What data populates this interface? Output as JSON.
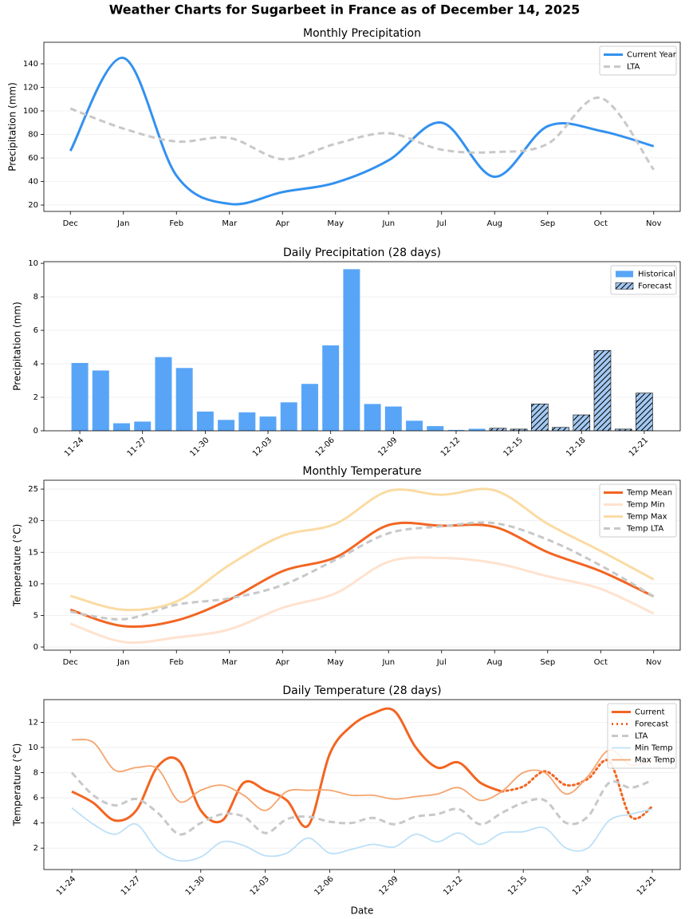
{
  "title": "Weather Charts for Sugarbeet in France as of December 14, 2025",
  "chart_data": [
    {
      "type": "line",
      "title": "Monthly Precipitation",
      "ylabel": "Precipitation (mm)",
      "categories": [
        "Dec",
        "Jan",
        "Feb",
        "Mar",
        "Apr",
        "May",
        "Jun",
        "Jul",
        "Aug",
        "Sep",
        "Oct",
        "Nov"
      ],
      "series": [
        {
          "name": "Current Year",
          "color": "#3391f0",
          "linestyle": "solid",
          "linewidth": 3,
          "values": [
            66,
            145,
            45,
            21,
            31,
            39,
            58,
            90,
            44,
            87,
            83,
            70
          ]
        },
        {
          "name": "LTA",
          "color": "#c8c8c8",
          "linestyle": "dashed",
          "linewidth": 3,
          "values": [
            102,
            85,
            74,
            77,
            59,
            72,
            81,
            67,
            65,
            72,
            111,
            50
          ]
        }
      ],
      "ylim": [
        14.6,
        158.3
      ],
      "yticks": [
        20,
        40,
        60,
        80,
        100,
        120,
        140
      ],
      "grid": true,
      "legend": "upper right"
    },
    {
      "type": "bar",
      "title": "Daily Precipitation (28 days)",
      "ylabel": "Precipitation (mm)",
      "categories": [
        "11-24",
        null,
        null,
        "11-27",
        null,
        null,
        "11-30",
        null,
        null,
        "12-03",
        null,
        null,
        "12-06",
        null,
        null,
        "12-09",
        null,
        null,
        "12-12",
        null,
        null,
        "12-15",
        null,
        null,
        "12-18",
        null,
        null,
        "12-21"
      ],
      "series": [
        {
          "name": "Historical",
          "color": "#58a5f7",
          "hatch": false,
          "values": [
            4.05,
            3.6,
            0.45,
            0.55,
            4.4,
            3.75,
            1.15,
            0.65,
            1.1,
            0.85,
            1.7,
            2.8,
            5.1,
            9.65,
            1.6,
            1.45,
            0.6,
            0.28,
            0.05,
            0.12,
            null,
            null,
            null,
            null,
            null,
            null,
            null,
            null
          ]
        },
        {
          "name": "Forecast",
          "color": "#a3c9f2",
          "hatch": true,
          "values": [
            null,
            null,
            null,
            null,
            null,
            null,
            null,
            null,
            null,
            null,
            null,
            null,
            null,
            null,
            null,
            null,
            null,
            null,
            null,
            null,
            0.15,
            0.1,
            1.6,
            0.2,
            0.95,
            4.8,
            0.1,
            2.25
          ]
        }
      ],
      "ylim": [
        0,
        10.1
      ],
      "yticks": [
        0,
        2,
        4,
        6,
        8,
        10
      ],
      "grid": true,
      "legend": "upper right"
    },
    {
      "type": "line",
      "title": "Monthly Temperature",
      "ylabel": "Temperature (°C)",
      "categories": [
        "Dec",
        "Jan",
        "Feb",
        "Mar",
        "Apr",
        "May",
        "Jun",
        "Jul",
        "Aug",
        "Sep",
        "Oct",
        "Nov"
      ],
      "series": [
        {
          "name": "Temp Mean",
          "color": "#f26522",
          "linestyle": "solid",
          "linewidth": 3,
          "values": [
            5.9,
            3.3,
            4.2,
            7.5,
            12,
            14.2,
            19.3,
            19.2,
            19.0,
            15,
            12,
            8
          ]
        },
        {
          "name": "Temp Min",
          "color": "#ffe2cf",
          "linestyle": "solid",
          "linewidth": 3,
          "values": [
            3.7,
            0.8,
            1.5,
            2.8,
            6.2,
            8.5,
            13.5,
            14.1,
            13.3,
            11.2,
            9.2,
            5.3
          ]
        },
        {
          "name": "Temp Max",
          "color": "#fbdba3",
          "linestyle": "solid",
          "linewidth": 3,
          "values": [
            8.1,
            5.9,
            7.2,
            13,
            17.6,
            19.5,
            24.7,
            24.1,
            24.8,
            19.5,
            15.2,
            10.7
          ]
        },
        {
          "name": "Temp LTA",
          "color": "#c8c8c8",
          "linestyle": "dashed",
          "linewidth": 3,
          "values": [
            5.6,
            4.4,
            6.7,
            7.7,
            9.8,
            13.8,
            18.0,
            19.1,
            19.6,
            17.0,
            12.9,
            8.0
          ]
        }
      ],
      "ylim": [
        -0.5,
        26.4
      ],
      "yticks": [
        0,
        5,
        10,
        15,
        20,
        25
      ],
      "grid": true,
      "legend": "upper right"
    },
    {
      "type": "line",
      "title": "Daily Temperature (28 days)",
      "ylabel": "Temperature (°C)",
      "xlabel": "Date",
      "categories": [
        "11-24",
        null,
        null,
        "11-27",
        null,
        null,
        "11-30",
        null,
        null,
        "12-03",
        null,
        null,
        "12-06",
        null,
        null,
        "12-09",
        null,
        null,
        "12-12",
        null,
        null,
        "12-15",
        null,
        null,
        "12-18",
        null,
        null,
        "12-21"
      ],
      "series": [
        {
          "name": "Current",
          "color": "#f26522",
          "linestyle": "solid",
          "linewidth": 3,
          "values": [
            6.5,
            5.6,
            4.2,
            5.0,
            8.5,
            8.9,
            5.0,
            4.2,
            7.2,
            6.6,
            5.8,
            3.8,
            9.5,
            11.7,
            12.7,
            12.9,
            10.0,
            8.4,
            8.8,
            7.2,
            6.5,
            null,
            null,
            null,
            null,
            null,
            null,
            null
          ]
        },
        {
          "name": "Forecast",
          "color": "#f26522",
          "linestyle": "dotted",
          "linewidth": 3,
          "values": [
            null,
            null,
            null,
            null,
            null,
            null,
            null,
            null,
            null,
            null,
            null,
            null,
            null,
            null,
            null,
            null,
            null,
            null,
            null,
            null,
            6.5,
            6.9,
            8.1,
            7.0,
            7.5,
            8.9,
            4.5,
            5.3
          ]
        },
        {
          "name": "LTA",
          "color": "#c8c8c8",
          "linestyle": "dashed",
          "linewidth": 3,
          "values": [
            8.0,
            6.2,
            5.4,
            5.9,
            4.8,
            3.1,
            4.0,
            4.7,
            4.5,
            3.2,
            4.3,
            4.5,
            4.1,
            4.0,
            4.4,
            3.9,
            4.5,
            4.7,
            5.1,
            3.9,
            4.8,
            5.6,
            5.8,
            4.0,
            4.5,
            7.2,
            6.8,
            7.4
          ]
        },
        {
          "name": "Min Temp",
          "color": "#bde0f7",
          "linestyle": "solid",
          "linewidth": 1.8,
          "values": [
            5.2,
            3.9,
            3.1,
            3.9,
            1.8,
            1.0,
            1.3,
            2.5,
            2.2,
            1.4,
            1.6,
            2.8,
            1.6,
            1.9,
            2.3,
            2.1,
            3.1,
            2.5,
            3.2,
            2.3,
            3.2,
            3.3,
            3.6,
            2.0,
            2.0,
            4.2,
            4.7,
            5.1
          ]
        },
        {
          "name": "Max Temp",
          "color": "#f5a46e",
          "linestyle": "solid",
          "linewidth": 1.8,
          "values": [
            10.6,
            10.4,
            8.2,
            8.4,
            8.3,
            5.7,
            6.6,
            7.0,
            6.2,
            5.0,
            6.5,
            6.6,
            6.6,
            6.2,
            6.2,
            5.9,
            6.1,
            6.3,
            6.8,
            5.8,
            6.5,
            8.0,
            8.0,
            6.3,
            7.7,
            9.8,
            8.6,
            9.0
          ]
        }
      ],
      "ylim": [
        0.3,
        13.8
      ],
      "yticks": [
        2,
        4,
        6,
        8,
        10,
        12
      ],
      "grid": true,
      "legend": "upper right"
    }
  ]
}
